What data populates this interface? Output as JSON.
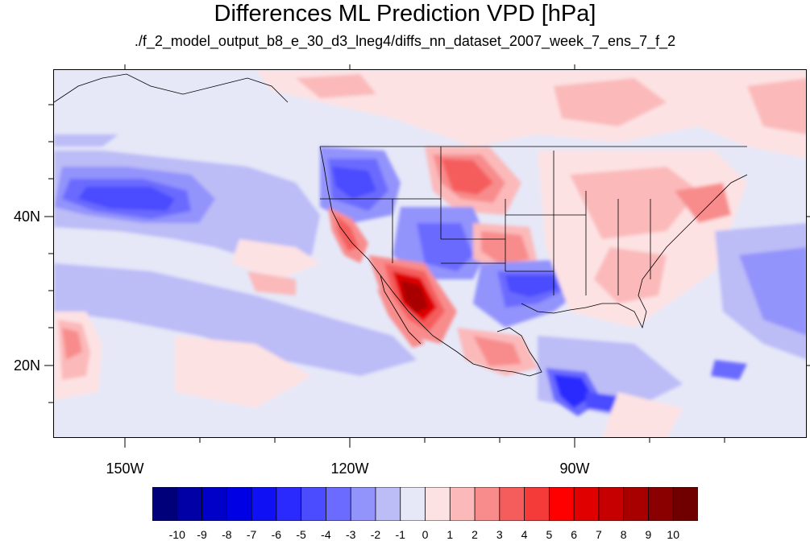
{
  "title": "Differences ML Prediction VPD [hPa]",
  "subtitle": "./f_2_model_output_b8_e_30_d3_lneg4/diffs_nn_dataset_2007_week_7_ens_7_f_2",
  "axes": {
    "lat_labels": [
      "40N",
      "20N"
    ],
    "lon_labels": [
      "150W",
      "120W",
      "90W"
    ]
  },
  "colorbar": {
    "labels": [
      "-10",
      "-9",
      "-8",
      "-7",
      "-6",
      "-5",
      "-4",
      "-3",
      "-2",
      "-1",
      "0",
      "1",
      "2",
      "3",
      "4",
      "5",
      "6",
      "7",
      "8",
      "9",
      "10"
    ],
    "colors": [
      "#00007a",
      "#0000a6",
      "#0000c8",
      "#0000e4",
      "#1010f5",
      "#2a2aff",
      "#4b4bff",
      "#6b6bff",
      "#9393fc",
      "#bcbcf7",
      "#e6e8f8",
      "#fde2e3",
      "#fbb9ba",
      "#f88c8c",
      "#f55d5d",
      "#f53a3a",
      "#ff0000",
      "#e00000",
      "#c60000",
      "#a80000",
      "#8a0000",
      "#700000"
    ]
  }
}
